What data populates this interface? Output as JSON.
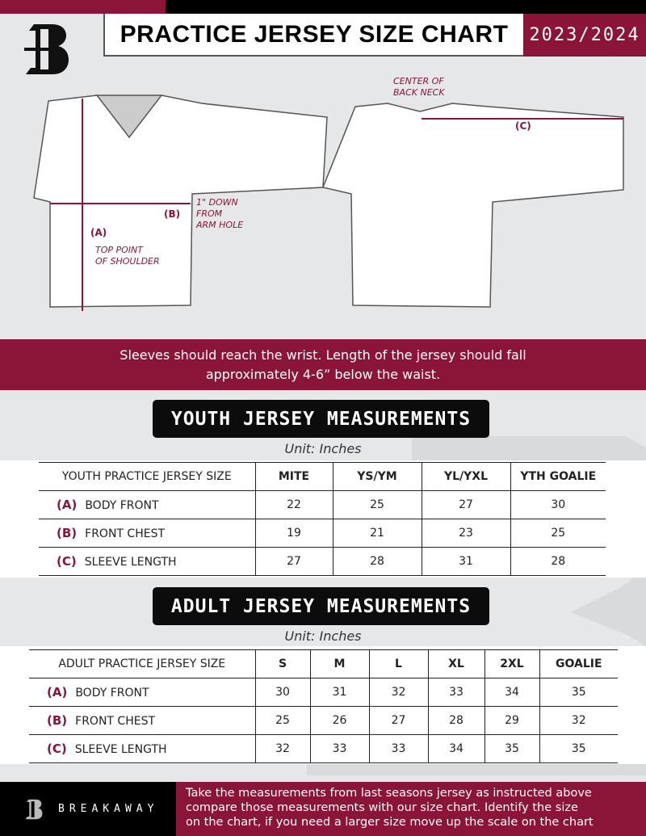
{
  "header": {
    "title": "PRACTICE JERSEY SIZE CHART",
    "season": "2023/2024",
    "logo_text": "B"
  },
  "diagram": {
    "front": {
      "label_a": "(A)",
      "label_b": "(B)",
      "note_b": [
        "1\" DOWN",
        "FROM",
        "ARM HOLE"
      ],
      "note_a": [
        "TOP POINT",
        "OF SHOULDER"
      ]
    },
    "back": {
      "label_c": "(C)",
      "note_c": [
        "CENTER OF",
        "BACK NECK"
      ]
    }
  },
  "instructions": [
    "Sleeves should reach the wrist. Length of the jersey should fall",
    "approximately 4-6” below the waist."
  ],
  "youth": {
    "title": "YOUTH JERSEY MEASUREMENTS",
    "unit": "Unit: Inches",
    "header": [
      "YOUTH PRACTICE JERSEY SIZE",
      "MITE",
      "YS/YM",
      "YL/YXL",
      "YTH GOALIE"
    ],
    "rows": [
      {
        "code": "(A)",
        "name": "BODY FRONT",
        "values": [
          "22",
          "25",
          "27",
          "30"
        ]
      },
      {
        "code": "(B)",
        "name": "FRONT CHEST",
        "values": [
          "19",
          "21",
          "23",
          "25"
        ]
      },
      {
        "code": "(C)",
        "name": "SLEEVE LENGTH",
        "values": [
          "27",
          "28",
          "31",
          "28"
        ]
      }
    ]
  },
  "adult": {
    "title": "ADULT JERSEY MEASUREMENTS",
    "unit": "Unit: Inches",
    "header": [
      "ADULT PRACTICE JERSEY SIZE",
      "S",
      "M",
      "L",
      "XL",
      "2XL",
      "GOALIE"
    ],
    "rows": [
      {
        "code": "(A)",
        "name": "BODY FRONT",
        "values": [
          "30",
          "31",
          "32",
          "33",
          "34",
          "35"
        ]
      },
      {
        "code": "(B)",
        "name": "FRONT CHEST",
        "values": [
          "25",
          "26",
          "27",
          "28",
          "29",
          "32"
        ]
      },
      {
        "code": "(C)",
        "name": "SLEEVE LENGTH",
        "values": [
          "32",
          "33",
          "33",
          "34",
          "35",
          "35"
        ]
      }
    ]
  },
  "footer": {
    "brand": "BREAKAWAY",
    "text": [
      "Take the measurements from last seasons jersey as instructed above",
      "compare those measurements  with our size chart. Identify the size",
      "on the chart, if you need a larger size move up the scale on the chart"
    ]
  },
  "colors": {
    "accent": "#8a1538",
    "background": "#e6e7e8",
    "dark": "#000000"
  }
}
